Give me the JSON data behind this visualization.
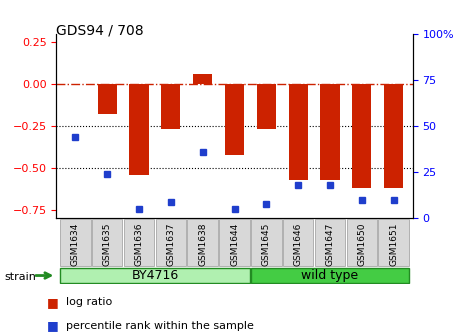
{
  "title": "GDS94 / 708",
  "categories": [
    "GSM1634",
    "GSM1635",
    "GSM1636",
    "GSM1637",
    "GSM1638",
    "GSM1644",
    "GSM1645",
    "GSM1646",
    "GSM1647",
    "GSM1650",
    "GSM1651"
  ],
  "log_ratio": [
    0.0,
    -0.18,
    -0.54,
    -0.27,
    0.06,
    -0.42,
    -0.27,
    -0.57,
    -0.57,
    -0.62,
    -0.62
  ],
  "percentile_rank": [
    44,
    24,
    5,
    9,
    36,
    5,
    8,
    18,
    18,
    10,
    10
  ],
  "bar_color": "#CC2200",
  "dot_color": "#1F3ECC",
  "ylim_left": [
    -0.8,
    0.3
  ],
  "ylim_right": [
    0,
    100
  ],
  "yticks_left": [
    -0.75,
    -0.5,
    -0.25,
    0,
    0.25
  ],
  "yticks_right": [
    0,
    25,
    50,
    75,
    100
  ],
  "dotted_lines": [
    -0.25,
    -0.5
  ],
  "by4716_color": "#B0F0B0",
  "wildtype_color": "#44CC44",
  "strain_border_color": "#228B22",
  "legend_items": [
    "log ratio",
    "percentile rank within the sample"
  ],
  "strain_label": "strain"
}
